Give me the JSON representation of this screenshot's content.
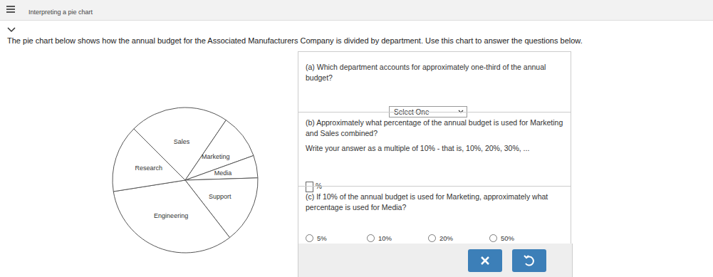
{
  "header": {
    "title": "Interpreting a pie chart"
  },
  "intro": "The pie chart below shows how the annual budget for the Associated Manufacturers Company is divided by department. Use this chart to answer the questions below.",
  "chart_data": {
    "type": "pie",
    "categories": [
      "Sales",
      "Marketing",
      "Media",
      "Support",
      "Engineering",
      "Research"
    ],
    "values": [
      22,
      10,
      5,
      15,
      33,
      15
    ],
    "color": "#ffffff"
  },
  "questions": [
    {
      "text": "(a) Which department accounts for approximately one-third of the annual budget?",
      "select": "Select One"
    },
    {
      "text": "(b) Approximately what percentage of the annual budget is used for Marketing and Sales combined?",
      "hint": "Write your answer as a multiple of 10% - that is, 10%, 20%, 30%, ...",
      "unit": "%"
    },
    {
      "text": "(c) If 10% of the annual budget is used for Marketing, approximately what percentage is used for Media?",
      "options": [
        "5%",
        "10%",
        "20%",
        "50%"
      ]
    }
  ]
}
